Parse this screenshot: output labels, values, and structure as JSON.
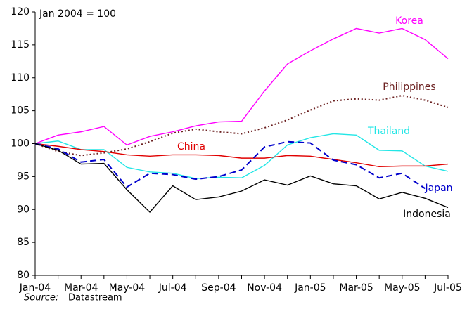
{
  "chart_data": {
    "type": "line",
    "annotation": "Jan 2004 = 100",
    "source_label": "Source:",
    "source": "Datastream",
    "categories": [
      "Jan-04",
      null,
      "Mar-04",
      null,
      "May-04",
      null,
      "Jul-04",
      null,
      "Sep-04",
      null,
      "Nov-04",
      null,
      "Jan-05",
      null,
      "Mar-05",
      null,
      "May-05",
      null,
      "Jul-05"
    ],
    "ylim": [
      80,
      120
    ],
    "yticks": [
      80,
      85,
      90,
      95,
      100,
      105,
      110,
      115,
      120
    ],
    "series": [
      {
        "name": "Korea",
        "color": "#ff00ff",
        "dash": "solid",
        "values": [
          100,
          101.3,
          101.8,
          102.6,
          99.8,
          101.1,
          101.8,
          102.7,
          103.3,
          103.4,
          108,
          112.1,
          114.1,
          115.9,
          117.5,
          116.8,
          117.5,
          115.8,
          112.9
        ]
      },
      {
        "name": "Philippines",
        "color": "#6b2020",
        "dash": "dotted",
        "values": [
          100,
          98.8,
          98.2,
          98.6,
          99.2,
          100.3,
          101.6,
          102.2,
          101.8,
          101.5,
          102.4,
          103.6,
          105.1,
          106.5,
          106.8,
          106.6,
          107.3,
          106.6,
          105.5
        ]
      },
      {
        "name": "Thailand",
        "color": "#22e6e6",
        "dash": "solid",
        "values": [
          100,
          100.4,
          99.1,
          99.1,
          96.4,
          95.7,
          95.5,
          94.7,
          94.9,
          94.8,
          96.7,
          99.8,
          100.9,
          101.5,
          101.3,
          99.0,
          98.9,
          96.6,
          95.8
        ]
      },
      {
        "name": "China",
        "color": "#e00000",
        "dash": "solid",
        "values": [
          100,
          99.6,
          99.1,
          98.8,
          98.3,
          98.1,
          98.3,
          98.3,
          98.2,
          97.8,
          97.8,
          98.2,
          98.1,
          97.6,
          97.1,
          96.5,
          96.6,
          96.6,
          96.9
        ]
      },
      {
        "name": "Japan",
        "color": "#0000cc",
        "dash": "dashed",
        "values": [
          100,
          99.2,
          97.2,
          97.6,
          93.4,
          95.5,
          95.3,
          94.6,
          95.0,
          96.0,
          99.5,
          100.3,
          100.1,
          97.5,
          96.8,
          94.8,
          95.5,
          93.2,
          null
        ]
      },
      {
        "name": "Indonesia",
        "color": "#000000",
        "dash": "solid",
        "values": [
          100,
          99.0,
          96.9,
          97.0,
          93.0,
          89.6,
          93.6,
          91.5,
          91.9,
          92.8,
          94.5,
          93.7,
          95.1,
          93.9,
          93.6,
          91.6,
          92.6,
          91.7,
          90.3
        ]
      }
    ]
  }
}
